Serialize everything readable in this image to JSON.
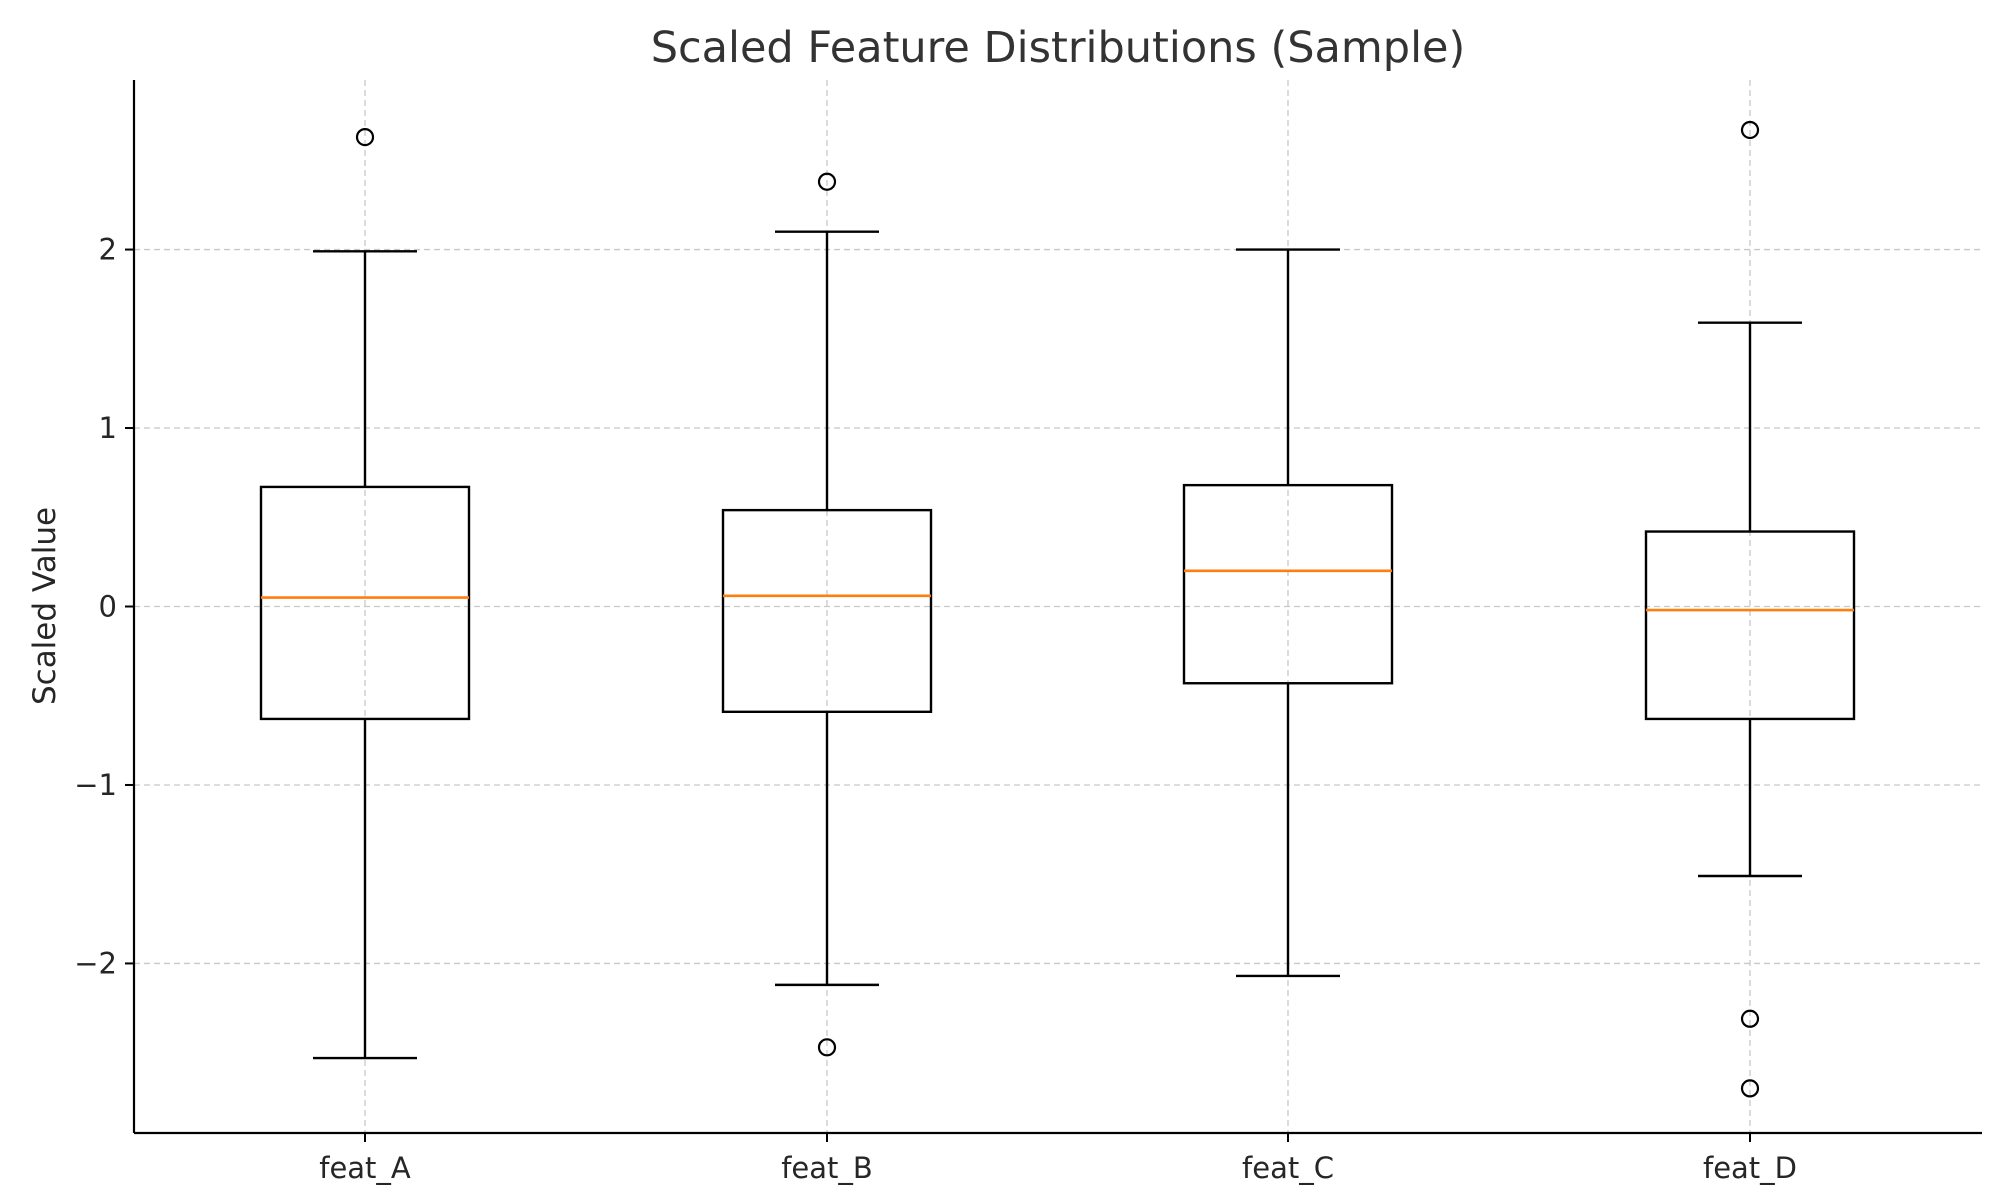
{
  "chart_data": {
    "type": "boxplot",
    "title": "Scaled Feature Distributions (Sample)",
    "xlabel": "",
    "ylabel": "Scaled Value",
    "ylim": [
      -2.95,
      2.95
    ],
    "yticks": [
      -2,
      -1,
      0,
      1,
      2
    ],
    "grid": true,
    "categories": [
      "feat_A",
      "feat_B",
      "feat_C",
      "feat_D"
    ],
    "boxes": [
      {
        "category": "feat_A",
        "whisker_low": -2.53,
        "q1": -0.63,
        "median": 0.05,
        "q3": 0.67,
        "whisker_high": 1.99,
        "outliers": [
          2.63
        ]
      },
      {
        "category": "feat_B",
        "whisker_low": -2.12,
        "q1": -0.59,
        "median": 0.06,
        "q3": 0.54,
        "whisker_high": 2.1,
        "outliers": [
          2.38,
          -2.47
        ]
      },
      {
        "category": "feat_C",
        "whisker_low": -2.07,
        "q1": -0.43,
        "median": 0.2,
        "q3": 0.68,
        "whisker_high": 2.0,
        "outliers": []
      },
      {
        "category": "feat_D",
        "whisker_low": -1.51,
        "q1": -0.63,
        "median": -0.02,
        "q3": 0.42,
        "whisker_high": 1.59,
        "outliers": [
          2.67,
          -2.31,
          -2.7
        ]
      }
    ],
    "colors": {
      "box": "#000000",
      "median": "#ff7f0e",
      "grid": "#c8c8c8",
      "outlier": "#000000"
    }
  }
}
